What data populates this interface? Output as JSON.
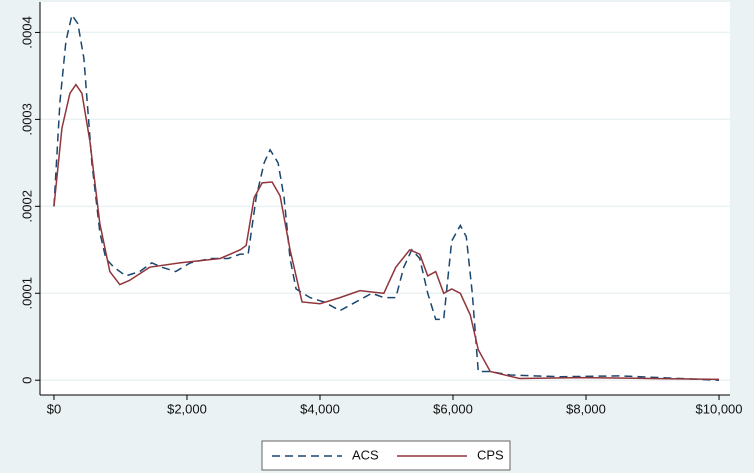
{
  "chart_data": {
    "type": "line",
    "series": [
      {
        "name": "ACS",
        "color": "#1a476f",
        "dash": true,
        "x": [
          0,
          90,
          180,
          270,
          360,
          450,
          570,
          690,
          780,
          900,
          1080,
          1290,
          1470,
          1620,
          1830,
          2050,
          2350,
          2620,
          2800,
          2920,
          3040,
          3160,
          3250,
          3370,
          3460,
          3550,
          3640,
          3850,
          4060,
          4300,
          4540,
          4780,
          4960,
          5140,
          5260,
          5380,
          5500,
          5620,
          5740,
          5860,
          5980,
          6110,
          6200,
          6290,
          6380,
          6560,
          6860,
          7610,
          8510,
          9410,
          10000
        ],
        "values": [
          0.0002,
          0.00032,
          0.00039,
          0.00042,
          0.00041,
          0.00037,
          0.00025,
          0.00017,
          0.00014,
          0.00013,
          0.00012,
          0.000125,
          0.000135,
          0.00013,
          0.000125,
          0.000135,
          0.00014,
          0.00014,
          0.000145,
          0.000145,
          0.00021,
          0.00025,
          0.000265,
          0.00025,
          0.00021,
          0.00014,
          0.000105,
          9.5e-05,
          9e-05,
          8e-05,
          9e-05,
          0.0001,
          9.5e-05,
          9.5e-05,
          0.00013,
          0.00015,
          0.00014,
          0.0001,
          7e-05,
          7e-05,
          0.00016,
          0.000178,
          0.000165,
          0.0001,
          1e-05,
          1e-05,
          6e-06,
          4e-06,
          5e-06,
          2e-06,
          0
        ]
      },
      {
        "name": "CPS",
        "color": "#90353b",
        "dash": false,
        "x": [
          0,
          120,
          240,
          330,
          420,
          540,
          690,
          840,
          990,
          1140,
          1440,
          1890,
          2500,
          2800,
          2890,
          3010,
          3130,
          3280,
          3400,
          3550,
          3730,
          4000,
          4300,
          4600,
          4960,
          5140,
          5350,
          5500,
          5620,
          5740,
          5860,
          5980,
          6110,
          6260,
          6380,
          6560,
          7000,
          7910,
          8960,
          10000
        ],
        "values": [
          0.0002,
          0.00029,
          0.00033,
          0.00034,
          0.00033,
          0.000275,
          0.00018,
          0.000125,
          0.00011,
          0.000115,
          0.00013,
          0.000135,
          0.00014,
          0.00015,
          0.000155,
          0.00021,
          0.000227,
          0.000228,
          0.000212,
          0.00015,
          9e-05,
          8.8e-05,
          9.5e-05,
          0.000103,
          0.0001,
          0.00013,
          0.00015,
          0.000145,
          0.00012,
          0.000125,
          0.0001,
          0.000105,
          0.0001,
          7.5e-05,
          3.5e-05,
          1e-05,
          2e-06,
          3e-06,
          2e-06,
          1e-06
        ]
      }
    ],
    "xlim": [
      -210,
      10165
    ],
    "xticks": [
      {
        "value": 0,
        "label": "$0"
      },
      {
        "value": 2000,
        "label": "$2,000"
      },
      {
        "value": 4000,
        "label": "$4,000"
      },
      {
        "value": 6000,
        "label": "$6,000"
      },
      {
        "value": 8000,
        "label": "$8,000"
      },
      {
        "value": 10000,
        "label": "$10,000"
      }
    ],
    "ylim": [
      -1.7e-05,
      0.000435
    ],
    "yticks": [
      0,
      {
        "value": 0.0001,
        "label": ".0001"
      },
      {
        "value": 0.0002,
        "label": ".0002"
      },
      {
        "value": 0.0003,
        "label": ".0003"
      },
      {
        "value": 0.0004,
        "label": ".0004"
      }
    ],
    "grid": true,
    "legend": "bottom"
  }
}
